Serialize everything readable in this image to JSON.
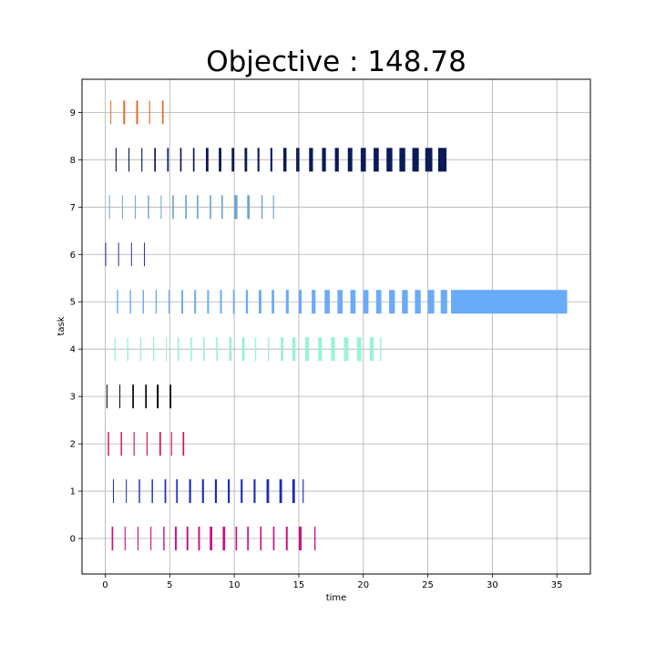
{
  "chart_data": {
    "type": "gantt",
    "title": "Objective : 148.78",
    "xlabel": "time",
    "ylabel": "task",
    "xlim": [
      -1.8,
      37.6
    ],
    "ylim": [
      -0.75,
      9.7
    ],
    "xticks": [
      0,
      5,
      10,
      15,
      20,
      25,
      30,
      35
    ],
    "yticks": [
      0,
      1,
      2,
      3,
      4,
      5,
      6,
      7,
      8,
      9
    ],
    "grid": true,
    "tasks": [
      {
        "task": 0,
        "color": "#c71585",
        "starts": [
          0.5,
          1.5,
          2.5,
          3.5,
          4.5,
          5.4,
          6.3,
          7.2,
          8.1,
          9.1,
          10.1,
          11.0,
          12.0,
          13.0,
          14.0,
          15.0,
          16.2
        ],
        "widths": [
          0.12,
          0.08,
          0.08,
          0.08,
          0.1,
          0.14,
          0.14,
          0.14,
          0.2,
          0.2,
          0.12,
          0.12,
          0.12,
          0.12,
          0.14,
          0.22,
          0.1
        ]
      },
      {
        "task": 1,
        "color": "#1c2bb5",
        "starts": [
          0.6,
          1.6,
          2.6,
          3.6,
          4.6,
          5.5,
          6.5,
          7.5,
          8.5,
          9.5,
          10.5,
          11.5,
          12.5,
          13.5,
          14.5,
          15.3
        ],
        "widths": [
          0.06,
          0.06,
          0.1,
          0.1,
          0.12,
          0.12,
          0.15,
          0.15,
          0.15,
          0.15,
          0.15,
          0.15,
          0.2,
          0.2,
          0.2,
          0.08
        ]
      },
      {
        "task": 2,
        "color": "#d0105a",
        "starts": [
          0.2,
          1.2,
          2.2,
          3.2,
          4.2,
          5.1,
          6.0
        ],
        "widths": [
          0.1,
          0.1,
          0.08,
          0.08,
          0.12,
          0.08,
          0.12
        ]
      },
      {
        "task": 3,
        "color": "#000000",
        "starts": [
          0.1,
          1.1,
          2.1,
          3.1,
          4.0,
          5.0
        ],
        "widths": [
          0.06,
          0.06,
          0.12,
          0.12,
          0.14,
          0.12
        ]
      },
      {
        "task": 4,
        "color": "#9bf2d6",
        "starts": [
          0.7,
          1.7,
          2.7,
          3.7,
          4.7,
          5.6,
          6.6,
          7.6,
          8.6,
          9.6,
          10.6,
          11.6,
          12.6,
          13.6,
          14.5,
          15.5,
          16.5,
          17.5,
          18.5,
          19.5,
          20.5,
          21.3
        ],
        "widths": [
          0.1,
          0.1,
          0.1,
          0.1,
          0.08,
          0.12,
          0.12,
          0.12,
          0.12,
          0.2,
          0.2,
          0.1,
          0.1,
          0.2,
          0.25,
          0.3,
          0.3,
          0.3,
          0.35,
          0.35,
          0.3,
          0.1
        ]
      },
      {
        "task": 5,
        "color": "#6aabf7",
        "starts": [
          0.9,
          1.9,
          2.9,
          3.9,
          4.9,
          5.9,
          6.9,
          7.9,
          8.9,
          9.9,
          10.9,
          11.9,
          12.9,
          14.0,
          15.0,
          16.0,
          17.0,
          18.0,
          19.0,
          20.0,
          21.0,
          22.0,
          23.0,
          24.0,
          25.0,
          26.0,
          26.8
        ],
        "widths": [
          0.1,
          0.1,
          0.1,
          0.1,
          0.1,
          0.14,
          0.14,
          0.14,
          0.14,
          0.14,
          0.16,
          0.2,
          0.2,
          0.22,
          0.22,
          0.3,
          0.4,
          0.4,
          0.4,
          0.4,
          0.4,
          0.45,
          0.45,
          0.45,
          0.5,
          0.5,
          9.0
        ]
      },
      {
        "task": 6,
        "color": "#3a2aa3",
        "starts": [
          0.0,
          1.0,
          2.0,
          3.0
        ],
        "widths": [
          0.06,
          0.06,
          0.06,
          0.06
        ]
      },
      {
        "task": 7,
        "color": "#6ea6d0",
        "starts": [
          0.3,
          1.3,
          2.3,
          3.3,
          4.3,
          5.2,
          6.2,
          7.1,
          8.1,
          9.0,
          10.0,
          11.0,
          12.1,
          13.0
        ],
        "widths": [
          0.05,
          0.05,
          0.05,
          0.1,
          0.05,
          0.12,
          0.12,
          0.12,
          0.12,
          0.12,
          0.25,
          0.2,
          0.1,
          0.08
        ]
      },
      {
        "task": 8,
        "color": "#0b1a58",
        "starts": [
          0.8,
          1.8,
          2.8,
          3.8,
          4.8,
          5.8,
          6.8,
          7.8,
          8.8,
          9.8,
          10.8,
          11.8,
          12.8,
          13.8,
          14.8,
          15.8,
          16.8,
          17.8,
          18.8,
          19.8,
          20.8,
          21.8,
          22.8,
          23.8,
          24.8,
          25.8
        ],
        "widths": [
          0.08,
          0.08,
          0.08,
          0.12,
          0.12,
          0.12,
          0.12,
          0.2,
          0.2,
          0.2,
          0.2,
          0.15,
          0.15,
          0.25,
          0.25,
          0.3,
          0.3,
          0.3,
          0.35,
          0.4,
          0.4,
          0.45,
          0.45,
          0.5,
          0.55,
          0.65
        ]
      },
      {
        "task": 9,
        "color": "#e2692a",
        "starts": [
          0.4,
          1.4,
          2.4,
          3.4,
          4.4
        ],
        "widths": [
          0.06,
          0.14,
          0.14,
          0.08,
          0.12
        ]
      }
    ]
  }
}
